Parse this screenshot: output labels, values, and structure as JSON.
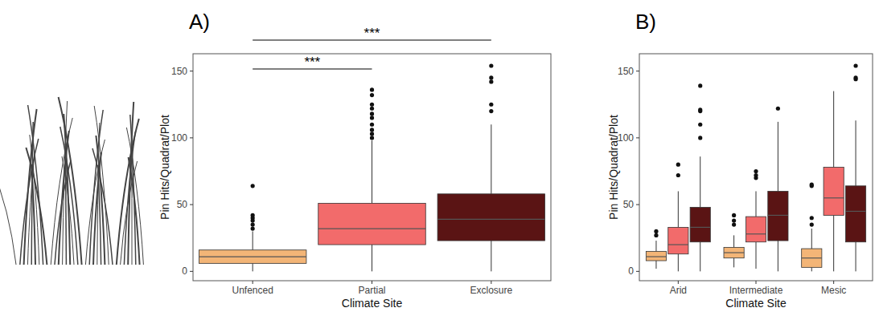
{
  "chart_data": [
    {
      "type": "box",
      "title": "A)",
      "x_label": "Climate Site",
      "y_label": "Pin Hits/Quadrat/Plot",
      "categories": [
        "Unfenced",
        "Partial",
        "Exclosure"
      ],
      "ylim": [
        -7,
        163
      ],
      "yticks": [
        0,
        50,
        100,
        150
      ],
      "grid": false,
      "annotations": [
        {
          "text": "***",
          "from": "Unfenced",
          "to": "Partial"
        },
        {
          "text": "***",
          "from": "Unfenced",
          "to": "Exclosure"
        }
      ],
      "series": [
        {
          "colors": [
            "#f3b577",
            "#f26b6b",
            "#5a1414"
          ],
          "boxes": [
            {
              "whisker_low": 0,
              "q1": 6,
              "median": 11,
              "q3": 16,
              "whisker_high": 30,
              "outliers": [
                32,
                35,
                38,
                40,
                42,
                64
              ]
            },
            {
              "whisker_low": 0,
              "q1": 20,
              "median": 32,
              "q3": 51,
              "whisker_high": 98,
              "outliers": [
                100,
                103,
                106,
                110,
                115,
                118,
                122,
                125,
                132,
                136
              ]
            },
            {
              "whisker_low": 0,
              "q1": 23,
              "median": 39,
              "q3": 58,
              "whisker_high": 110,
              "outliers": [
                120,
                125,
                142,
                145,
                154
              ]
            }
          ]
        }
      ]
    },
    {
      "type": "box",
      "title": "B)",
      "x_label": "Climate Site",
      "y_label": "Pin Hits/Quadrat/Plot",
      "categories": [
        "Arid",
        "Intermediate",
        "Mesic"
      ],
      "ylim": [
        -7,
        163
      ],
      "yticks": [
        0,
        50,
        100,
        150
      ],
      "grid": false,
      "series": [
        {
          "color": "#f3b577",
          "boxes": [
            {
              "whisker_low": 2,
              "q1": 8,
              "median": 11,
              "q3": 15,
              "whisker_high": 23,
              "outliers": [
                27,
                30
              ]
            },
            {
              "whisker_low": 3,
              "q1": 10,
              "median": 14,
              "q3": 18,
              "whisker_high": 27,
              "outliers": [
                35,
                38,
                42
              ]
            },
            {
              "whisker_low": 0,
              "q1": 3,
              "median": 10,
              "q3": 17,
              "whisker_high": 32,
              "outliers": [
                35,
                40,
                64,
                65
              ]
            }
          ]
        },
        {
          "color": "#f26b6b",
          "boxes": [
            {
              "whisker_low": 0,
              "q1": 13,
              "median": 20,
              "q3": 33,
              "whisker_high": 60,
              "outliers": [
                72,
                80
              ]
            },
            {
              "whisker_low": 2,
              "q1": 22,
              "median": 28,
              "q3": 41,
              "whisker_high": 60,
              "outliers": [
                70,
                72,
                75
              ]
            },
            {
              "whisker_low": 0,
              "q1": 42,
              "median": 55,
              "q3": 78,
              "whisker_high": 135,
              "outliers": []
            }
          ]
        },
        {
          "color": "#5a1414",
          "boxes": [
            {
              "whisker_low": 0,
              "q1": 22,
              "median": 33,
              "q3": 48,
              "whisker_high": 86,
              "outliers": [
                100,
                110,
                120,
                121,
                139
              ]
            },
            {
              "whisker_low": 0,
              "q1": 23,
              "median": 42,
              "q3": 60,
              "whisker_high": 112,
              "outliers": [
                122
              ]
            },
            {
              "whisker_low": 0,
              "q1": 22,
              "median": 45,
              "q3": 64,
              "whisker_high": 113,
              "outliers": [
                144,
                145,
                154
              ]
            }
          ]
        }
      ]
    }
  ]
}
